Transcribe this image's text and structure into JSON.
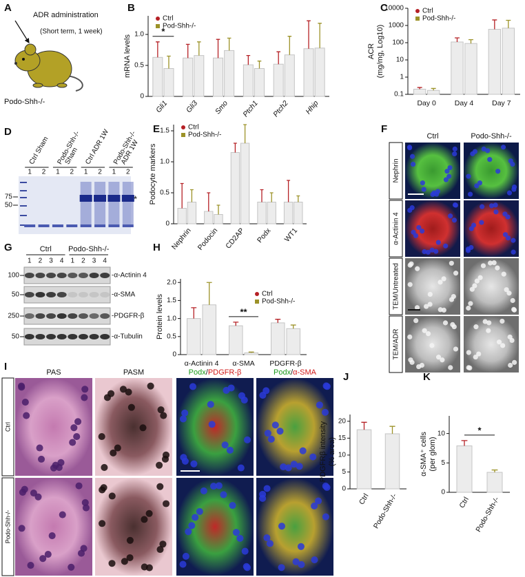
{
  "panel_labels": [
    "A",
    "B",
    "C",
    "D",
    "E",
    "F",
    "G",
    "H",
    "I",
    "J",
    "K"
  ],
  "panel_a": {
    "title": "ADR administration",
    "subtitle": "(Short term, 1 week)",
    "label": "Podo-Shh-/-"
  },
  "panel_d": {
    "lanes": [
      [
        "Ctrl Sham"
      ],
      [
        "Podo-Shh-/-",
        "Sham"
      ],
      [
        "Ctrl ADR 1W"
      ],
      [
        "Podo-Shh-/-",
        "ADR 1W"
      ]
    ],
    "lane_numbers": [
      "1",
      "2",
      "1",
      "2",
      "1",
      "2",
      "1",
      "2"
    ],
    "markers": [
      "75",
      "50"
    ],
    "band_note": "*"
  },
  "panel_f": {
    "columns": [
      "Ctrl",
      "Podo-Shh-/-"
    ],
    "rows": [
      "Nephrin",
      "α-Actinin 4",
      "TEM/Untreated",
      "TEM/ADR"
    ]
  },
  "panel_g": {
    "groups": [
      "Ctrl",
      "Podo-Shh-/-"
    ],
    "lane_numbers": [
      "1",
      "2",
      "3",
      "4",
      "1",
      "2",
      "3",
      "4"
    ],
    "markers": [
      "100",
      "50",
      "250",
      "50"
    ],
    "proteins": [
      "-α-Actinin 4",
      "-α-SMA",
      "-PDGFR-β",
      "-α-Tubulin"
    ]
  },
  "panel_i": {
    "columns": [
      [
        "PAS"
      ],
      [
        "PASM"
      ],
      [
        "Podx",
        "/",
        "PDGFR-β"
      ],
      [
        "Podx",
        "/",
        "α-SMA"
      ]
    ],
    "rows": [
      "Ctrl",
      "Podo-Shh-/-"
    ]
  },
  "chart_data": [
    {
      "type": "bar",
      "ylabel": [
        "mRNA levels"
      ],
      "categories": [
        "Gli1",
        "Gli3",
        "Smo",
        "Ptch1",
        "Ptch2",
        "Hhip"
      ],
      "series": [
        {
          "name": "Ctrl",
          "color": "#b52025",
          "values": [
            0.63,
            0.62,
            0.62,
            0.51,
            0.52,
            0.77
          ],
          "errors": [
            0.25,
            0.22,
            0.3,
            0.15,
            0.2,
            0.45
          ]
        },
        {
          "name": "Pod-Shh-/-",
          "color": "#9c9228",
          "values": [
            0.45,
            0.66,
            0.74,
            0.45,
            0.67,
            0.78
          ],
          "errors": [
            0.2,
            0.22,
            0.2,
            0.12,
            0.3,
            0.4
          ]
        }
      ],
      "ylim": [
        0,
        1.3
      ],
      "yticks": [
        0,
        0.5,
        {
          "value": 1,
          "label": "1.0"
        }
      ],
      "legend": "top-left",
      "annotation": "*"
    },
    {
      "type": "bar",
      "ylabel": [
        "ACR",
        "(mg/mg, Log10)"
      ],
      "categories": [
        "Day 0",
        "Day 4",
        "Day 7"
      ],
      "log": true,
      "series": [
        {
          "name": "Ctrl",
          "color": "#b52025",
          "values": [
            0.2,
            110,
            600
          ],
          "errors": [
            0.05,
            80,
            1500
          ]
        },
        {
          "name": "Pod-Shh-/-",
          "color": "#9c9228",
          "values": [
            0.17,
            90,
            700
          ],
          "errors": [
            0.05,
            60,
            1300
          ]
        }
      ],
      "ylim": [
        0.1,
        10000
      ],
      "yticks": [
        0.1,
        1,
        10,
        100,
        1000,
        10000
      ],
      "legend": "top-left"
    },
    {
      "type": "bar",
      "ylabel": [
        "Podocyte markers"
      ],
      "categories": [
        "Nephrin",
        "Podocin",
        "CD2AP",
        "Podx",
        "WT1"
      ],
      "series": [
        {
          "name": "Ctrl",
          "color": "#b52025",
          "values": [
            0.25,
            0.2,
            1.15,
            0.35,
            0.35
          ],
          "errors": [
            0.4,
            0.3,
            0.15,
            0.2,
            0.35
          ]
        },
        {
          "name": "Pod-Shh-/-",
          "color": "#9c9228",
          "values": [
            0.35,
            0.15,
            1.3,
            0.35,
            0.35
          ],
          "errors": [
            0.2,
            0.15,
            0.3,
            0.15,
            0.1
          ]
        }
      ],
      "ylim": [
        0,
        1.6
      ],
      "yticks": [
        0,
        0.5,
        {
          "value": 1,
          "label": "1.0"
        },
        1.5
      ],
      "legend": "top-left"
    },
    {
      "type": "bar",
      "ylabel": [
        "Protein levels"
      ],
      "categories": [
        "α-Actinin 4",
        "α-SMA",
        "PDGFR-β"
      ],
      "series": [
        {
          "name": "Ctrl",
          "color": "#b52025",
          "values": [
            1.0,
            0.8,
            0.88
          ],
          "errors": [
            0.3,
            0.1,
            0.1
          ]
        },
        {
          "name": "Pod-Shh-/-",
          "color": "#9c9228",
          "values": [
            1.38,
            0.05,
            0.72
          ],
          "errors": [
            0.62,
            0.02,
            0.1
          ]
        }
      ],
      "ylim": [
        0,
        2.1
      ],
      "yticks": [
        0,
        0.5,
        {
          "value": 1,
          "label": "1.0"
        },
        1.5,
        {
          "value": 2,
          "label": "2.0"
        }
      ],
      "legend": "top-right",
      "annotation": "**"
    },
    {
      "type": "bar",
      "ylabel": [
        "PDGFRβ intensity",
        "(% area)"
      ],
      "categories": [
        "Ctrl",
        "Podo-Shh-/-"
      ],
      "values": [
        17.5,
        16.3
      ],
      "errors": [
        2.2,
        2.2
      ],
      "colors": [
        "#b52025",
        "#9c9228"
      ],
      "ylim": [
        0,
        22
      ],
      "yticks": [
        0,
        5,
        10,
        15,
        20
      ]
    },
    {
      "type": "bar",
      "ylabel": [
        "α-SMA⁺ cells",
        "(per glom)"
      ],
      "categories": [
        "Ctrl",
        "Podo-Shh-/-"
      ],
      "values": [
        7.9,
        3.4
      ],
      "errors": [
        0.9,
        0.4
      ],
      "colors": [
        "#b52025",
        "#9c9228"
      ],
      "ylim": [
        0,
        13
      ],
      "yticks": [
        0,
        5,
        10
      ],
      "annotation": "*"
    }
  ]
}
